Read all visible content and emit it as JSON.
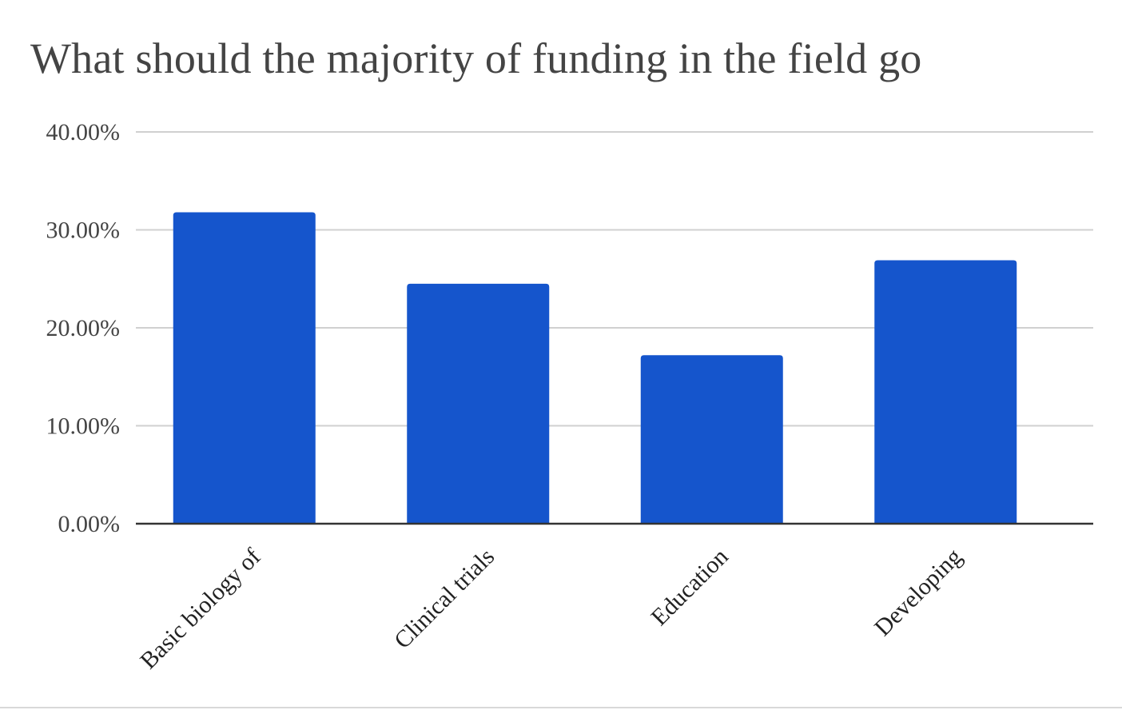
{
  "chart_data": {
    "type": "bar",
    "title": "What should the majority of funding in the field go",
    "xlabel": "",
    "ylabel": "",
    "categories": [
      "Basic biology of",
      "Clinical trials",
      "Education",
      "Developing"
    ],
    "values": [
      31.8,
      24.5,
      17.2,
      26.9
    ],
    "ylim": [
      0,
      40
    ],
    "yticks": [
      0,
      10,
      20,
      30,
      40
    ],
    "ytick_labels": [
      "0.00%",
      "10.00%",
      "20.00%",
      "30.00%",
      "40.00%"
    ],
    "grid": true,
    "legend": "none",
    "bar_color": "#1555cc",
    "grid_color": "#d0d0d0",
    "axis_color": "#333333",
    "text_color": "#444444"
  }
}
